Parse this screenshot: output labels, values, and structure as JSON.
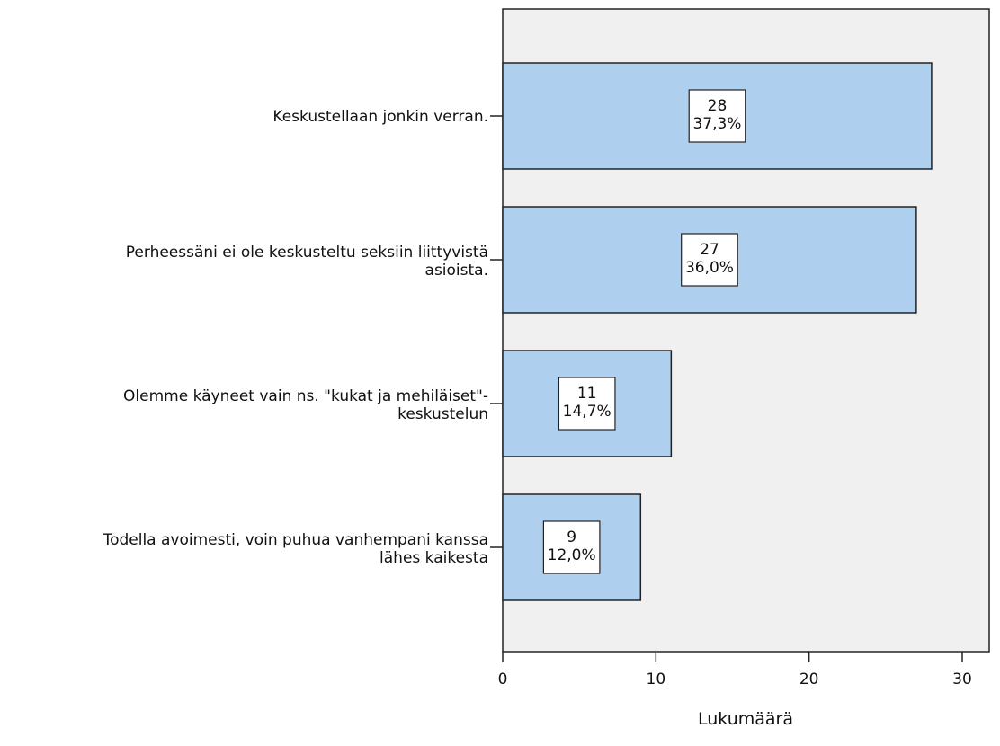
{
  "chart_data": {
    "type": "bar",
    "orientation": "horizontal",
    "categories": [
      [
        "Keskustellaan jonkin verran."
      ],
      [
        "Perheessäni ei ole keskusteltu seksiin liittyvistä",
        "asioista."
      ],
      [
        "Olemme käyneet vain ns. \"kukat ja mehiläiset\"-",
        "keskustelun"
      ],
      [
        "Todella avoimesti, voin puhua vanhempani kanssa",
        "lähes kaikesta"
      ]
    ],
    "values": [
      28,
      27,
      11,
      9
    ],
    "value_labels": [
      [
        "28",
        "37,3%"
      ],
      [
        "27",
        "36,0%"
      ],
      [
        "11",
        "14,7%"
      ],
      [
        "9",
        "12,0%"
      ]
    ],
    "percentages": [
      37.3,
      36.0,
      14.7,
      12.0
    ],
    "xlabel": "Lukumäärä",
    "ylabel": "",
    "title": "",
    "xlim": [
      0,
      30
    ],
    "x_ticks": [
      "0",
      "10",
      "20",
      "30"
    ],
    "grid": false,
    "colors": {
      "bar_fill": "#aecfee",
      "bar_stroke": "#222222",
      "plot_background": "#f0f0f0",
      "page_background": "#ffffff",
      "label_box_fill": "#ffffff"
    }
  }
}
